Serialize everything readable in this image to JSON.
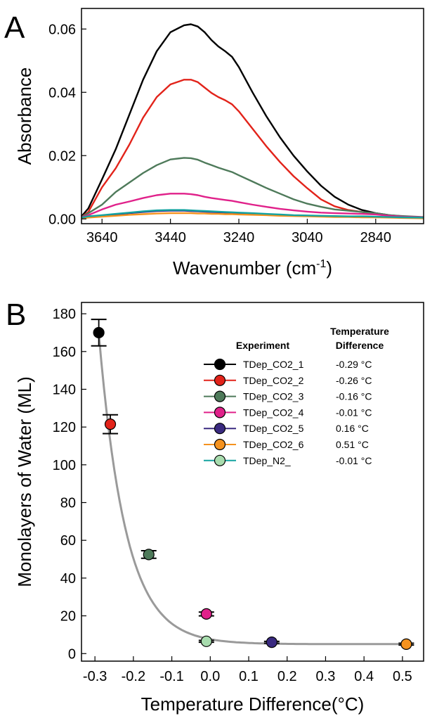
{
  "chart_data": [
    {
      "panel": "A",
      "type": "line",
      "xlabel": "Wavenumber (cm",
      "xlabel_sup": "-1",
      "xlabel_close": ")",
      "ylabel": "Absorbance",
      "xlim": [
        3700,
        2700
      ],
      "ylim": [
        -0.0015,
        0.0665
      ],
      "xticks": [
        3640,
        3440,
        3240,
        3040,
        2840
      ],
      "yticks": [
        0.0,
        0.02,
        0.04,
        0.06
      ],
      "ytick_labels": [
        "0.00",
        "0.02",
        "0.04",
        "0.06"
      ],
      "grid": false,
      "x": [
        3700,
        3680,
        3640,
        3600,
        3560,
        3520,
        3480,
        3440,
        3400,
        3380,
        3360,
        3340,
        3320,
        3300,
        3280,
        3260,
        3240,
        3200,
        3160,
        3120,
        3080,
        3040,
        3000,
        2960,
        2920,
        2880,
        2840,
        2800,
        2760,
        2700
      ],
      "series": [
        {
          "color": "#000000",
          "values": [
            0.0008,
            0.0033,
            0.0125,
            0.022,
            0.033,
            0.044,
            0.053,
            0.059,
            0.0612,
            0.0615,
            0.0608,
            0.059,
            0.0565,
            0.0545,
            0.053,
            0.0512,
            0.048,
            0.04,
            0.0325,
            0.0258,
            0.02,
            0.015,
            0.0105,
            0.007,
            0.0045,
            0.0028,
            0.0018,
            0.0012,
            0.0008,
            0.0005
          ]
        },
        {
          "color": "#e2231a",
          "values": [
            0.0006,
            0.0022,
            0.01,
            0.016,
            0.0235,
            0.032,
            0.0385,
            0.0425,
            0.044,
            0.044,
            0.0432,
            0.0415,
            0.0398,
            0.0385,
            0.0375,
            0.0362,
            0.034,
            0.0285,
            0.023,
            0.018,
            0.0135,
            0.0097,
            0.0062,
            0.004,
            0.0028,
            0.0022,
            0.0016,
            0.0011,
            0.0007,
            0.0004
          ]
        },
        {
          "color": "#4e7a5a",
          "values": [
            0.0006,
            0.0018,
            0.0045,
            0.0085,
            0.0115,
            0.0145,
            0.017,
            0.0188,
            0.0193,
            0.0192,
            0.0187,
            0.0178,
            0.017,
            0.0162,
            0.0155,
            0.0148,
            0.0138,
            0.0118,
            0.0098,
            0.008,
            0.0062,
            0.0048,
            0.0038,
            0.003,
            0.0026,
            0.0022,
            0.0018,
            0.0012,
            0.0009,
            0.0006
          ]
        },
        {
          "color": "#e0218a",
          "values": [
            0.0005,
            0.0012,
            0.003,
            0.0045,
            0.0055,
            0.0066,
            0.0075,
            0.008,
            0.008,
            0.0078,
            0.0075,
            0.007,
            0.0066,
            0.0063,
            0.006,
            0.0057,
            0.0053,
            0.0045,
            0.0038,
            0.0032,
            0.0027,
            0.0023,
            0.002,
            0.0018,
            0.0017,
            0.0016,
            0.0014,
            0.001,
            0.0007,
            0.0005
          ]
        },
        {
          "color": "#3a2a80",
          "values": [
            0.0003,
            0.0006,
            0.001,
            0.0014,
            0.0018,
            0.0022,
            0.0025,
            0.0026,
            0.0026,
            0.0025,
            0.0024,
            0.0023,
            0.0022,
            0.0021,
            0.002,
            0.0019,
            0.0018,
            0.0016,
            0.0014,
            0.0012,
            0.001,
            0.0009,
            0.0008,
            0.0008,
            0.0007,
            0.0007,
            0.0006,
            0.0005,
            0.0004,
            0.0003
          ]
        },
        {
          "color": "#f5921e",
          "values": [
            0.0002,
            0.0004,
            0.0007,
            0.001,
            0.0013,
            0.0015,
            0.0017,
            0.0018,
            0.0018,
            0.0018,
            0.0017,
            0.0017,
            0.0016,
            0.0016,
            0.0015,
            0.0015,
            0.0014,
            0.0013,
            0.0012,
            0.001,
            0.0009,
            0.0008,
            0.0007,
            0.0006,
            0.0006,
            0.0005,
            0.0005,
            0.0004,
            0.0003,
            0.0002
          ]
        },
        {
          "color": "#13a3a0",
          "values": [
            0.0004,
            0.0008,
            0.0012,
            0.0016,
            0.002,
            0.0024,
            0.0027,
            0.0028,
            0.0028,
            0.0027,
            0.0026,
            0.0025,
            0.0024,
            0.0023,
            0.0022,
            0.0021,
            0.002,
            0.0018,
            0.0016,
            0.0014,
            0.0012,
            0.0011,
            0.001,
            0.0009,
            0.0008,
            0.0008,
            0.0007,
            0.0006,
            0.0005,
            0.0004
          ]
        }
      ]
    },
    {
      "panel": "B",
      "type": "scatter",
      "xlabel": "Temperature Difference(°C)",
      "ylabel": "Monolayers of Water (ML)",
      "xlim": [
        -0.335,
        0.555
      ],
      "ylim": [
        -4,
        186
      ],
      "xticks": [
        -0.3,
        -0.2,
        -0.1,
        0.0,
        0.1,
        0.2,
        0.3,
        0.4,
        0.5
      ],
      "xtick_labels": [
        "-0.3",
        "-0.2",
        "-0.1",
        "0.0",
        "0.1",
        "0.2",
        "0.3",
        "0.4",
        "0.5"
      ],
      "yticks": [
        0,
        20,
        40,
        60,
        80,
        100,
        120,
        140,
        160,
        180
      ],
      "grid": false,
      "legend_position": "top-right",
      "legend_header_experiment": "Experiment",
      "legend_header_temp_line1": "Temperature",
      "legend_header_temp_line2": "Difference",
      "points": [
        {
          "name": "TDep_CO2_1",
          "temp_label": "-0.29 °C",
          "x": -0.29,
          "y": 170,
          "err": 7,
          "color": "#000000"
        },
        {
          "name": "TDep_CO2_2",
          "temp_label": "-0.26 °C",
          "x": -0.26,
          "y": 121.5,
          "err": 5,
          "color": "#e2231a"
        },
        {
          "name": "TDep_CO2_3",
          "temp_label": "-0.16 °C",
          "x": -0.16,
          "y": 52.5,
          "err": 2,
          "color": "#4e7a5a"
        },
        {
          "name": "TDep_CO2_4",
          "temp_label": "-0.01 °C",
          "x": -0.01,
          "y": 21,
          "err": 1,
          "color": "#e0218a"
        },
        {
          "name": "TDep_CO2_5",
          "temp_label": "0.16 °C",
          "x": 0.16,
          "y": 6,
          "err": 0.5,
          "color": "#3a2a80"
        },
        {
          "name": "TDep_CO2_6",
          "temp_label": "0.51 °C",
          "x": 0.51,
          "y": 5,
          "err": 0.5,
          "color": "#f5921e"
        },
        {
          "name": "TDep_N2_",
          "temp_label": "-0.01 °C",
          "x": -0.01,
          "y": 6.5,
          "err": 0.5,
          "color": "#a8dcae"
        }
      ],
      "fit": {
        "form": "y = y0 + A*exp(-(x - x0)/tau)",
        "y0": 5,
        "A": 164.5,
        "x0": -0.29,
        "tau": 0.07,
        "color": "#9a9a9a"
      }
    }
  ]
}
